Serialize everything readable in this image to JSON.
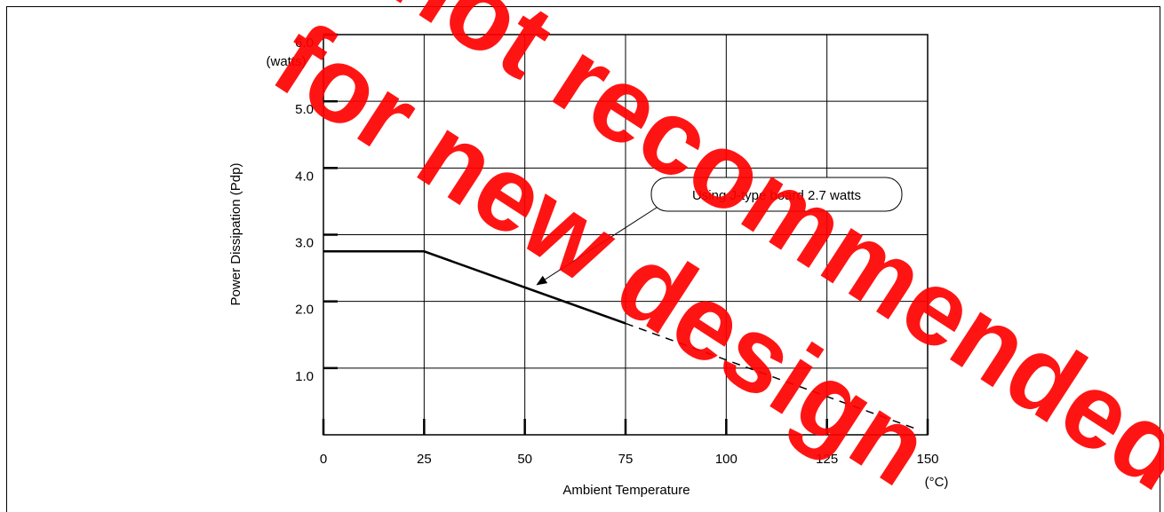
{
  "chart_data": {
    "type": "line",
    "title": "",
    "xlabel": "Ambient Temperature",
    "xunit": "(°C)",
    "ylabel": "Power Dissipation (Pdp)",
    "yunit": "(watts)",
    "xlim": [
      0,
      150
    ],
    "ylim": [
      0,
      6
    ],
    "xticks": [
      0,
      25,
      50,
      75,
      100,
      125,
      150
    ],
    "xtick_labels": [
      "0",
      "25",
      "50",
      "75",
      "100",
      "125",
      "150"
    ],
    "yticks": [
      1,
      2,
      3,
      4,
      5,
      6
    ],
    "ytick_labels": [
      "1.0",
      "2.0",
      "3.0",
      "4.0",
      "5.0",
      "6.0"
    ],
    "grid": true,
    "series": [
      {
        "style": "solid",
        "x": [
          0,
          25,
          75
        ],
        "y": [
          2.75,
          2.75,
          1.67
        ]
      },
      {
        "style": "dashed",
        "x": [
          75,
          148
        ],
        "y": [
          1.67,
          0.07
        ]
      }
    ],
    "annotation": {
      "text": "Using J-type board 2.7 watts",
      "point": [
        53,
        2.25
      ]
    },
    "watermark": {
      "lines": [
        "not recommended",
        "for new design"
      ],
      "color": "#ff0000"
    }
  }
}
